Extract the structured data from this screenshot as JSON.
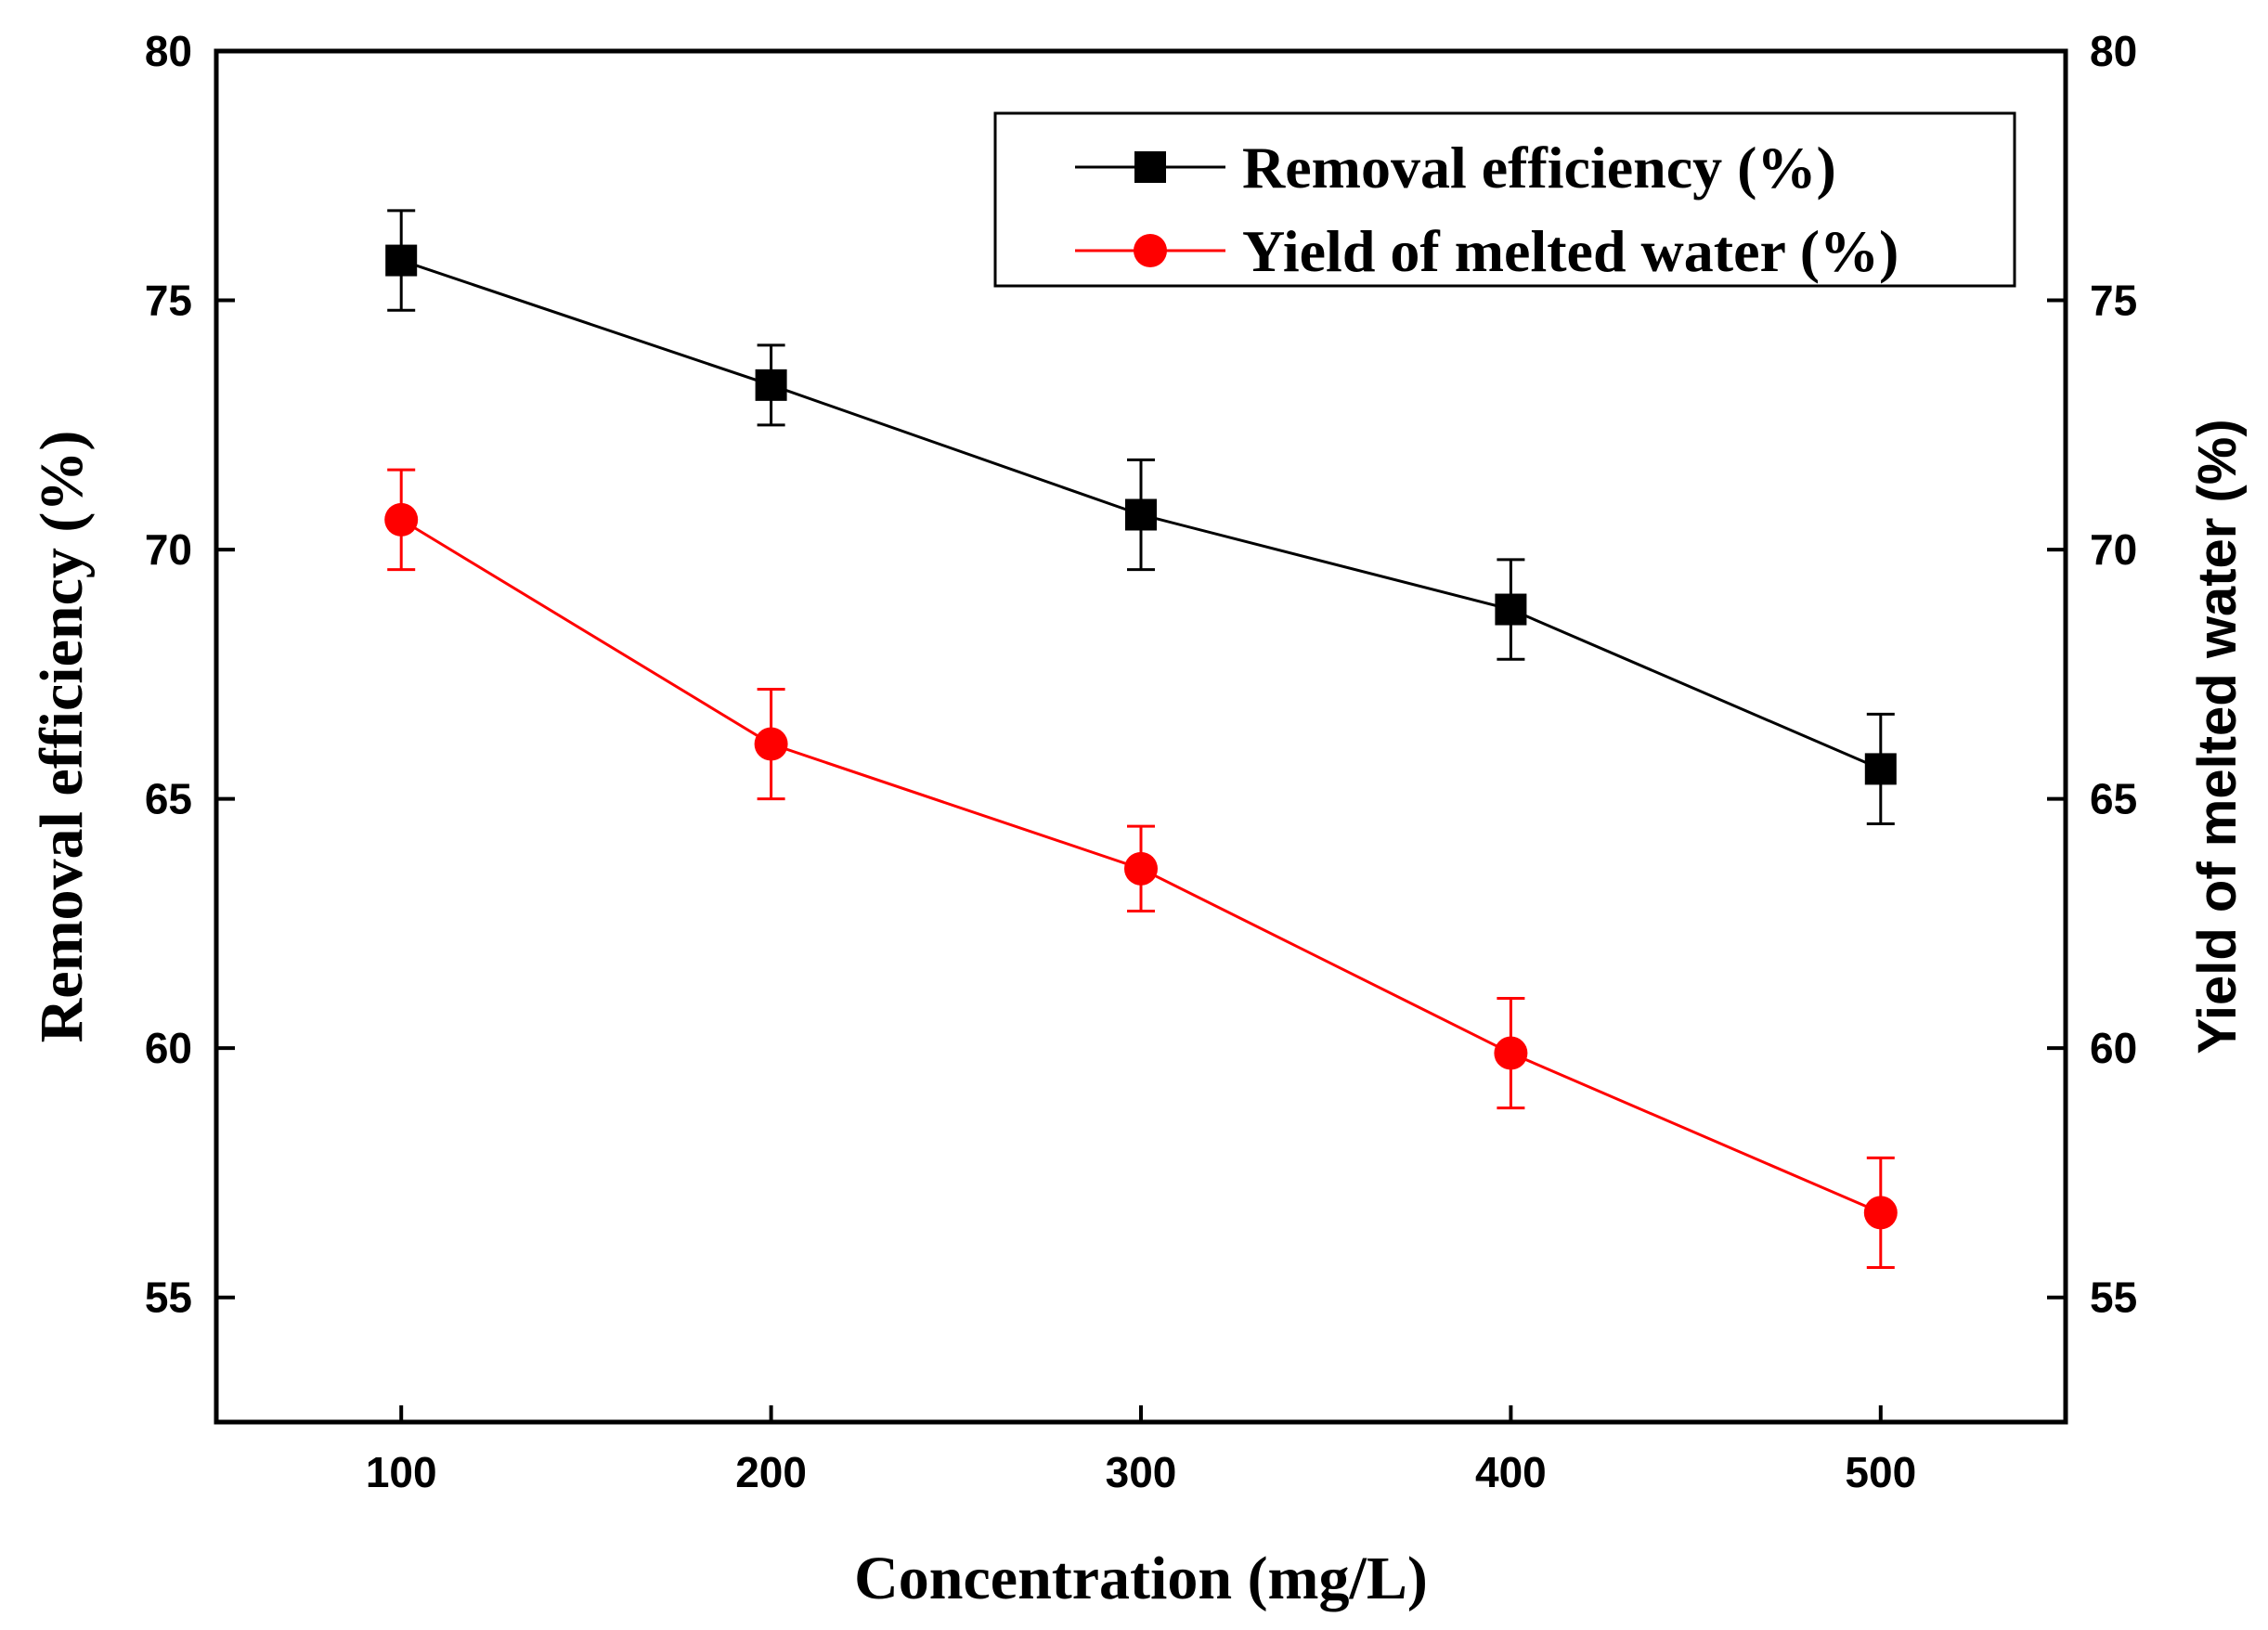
{
  "chart_data": {
    "type": "line",
    "x": [
      100,
      200,
      300,
      400,
      500
    ],
    "xlabel": "Concentration (mg/L)",
    "ylabel": "Removal efficiency (%)",
    "ylabel_right": "Yield of melted water (%)",
    "xlim": [
      50,
      550
    ],
    "ylim": [
      52.5,
      80
    ],
    "x_ticks": [
      "100",
      "200",
      "300",
      "400",
      "500"
    ],
    "y_ticks": [
      "55",
      "60",
      "65",
      "70",
      "75",
      "80"
    ],
    "grid": false,
    "legend_position": "top-right",
    "series": [
      {
        "name": "Removal efficiency (%)",
        "color": "#000000",
        "marker": "square",
        "axis": "left",
        "values": [
          75.8,
          73.3,
          70.7,
          68.8,
          65.6
        ],
        "errors": [
          1.0,
          0.8,
          1.1,
          1.0,
          1.1
        ]
      },
      {
        "name": "Yield of melted water (%)",
        "color": "#ff0000",
        "marker": "circle",
        "axis": "right",
        "values": [
          70.6,
          66.1,
          63.6,
          59.9,
          56.7
        ],
        "errors": [
          1.0,
          1.1,
          0.85,
          1.1,
          1.1
        ]
      }
    ]
  }
}
